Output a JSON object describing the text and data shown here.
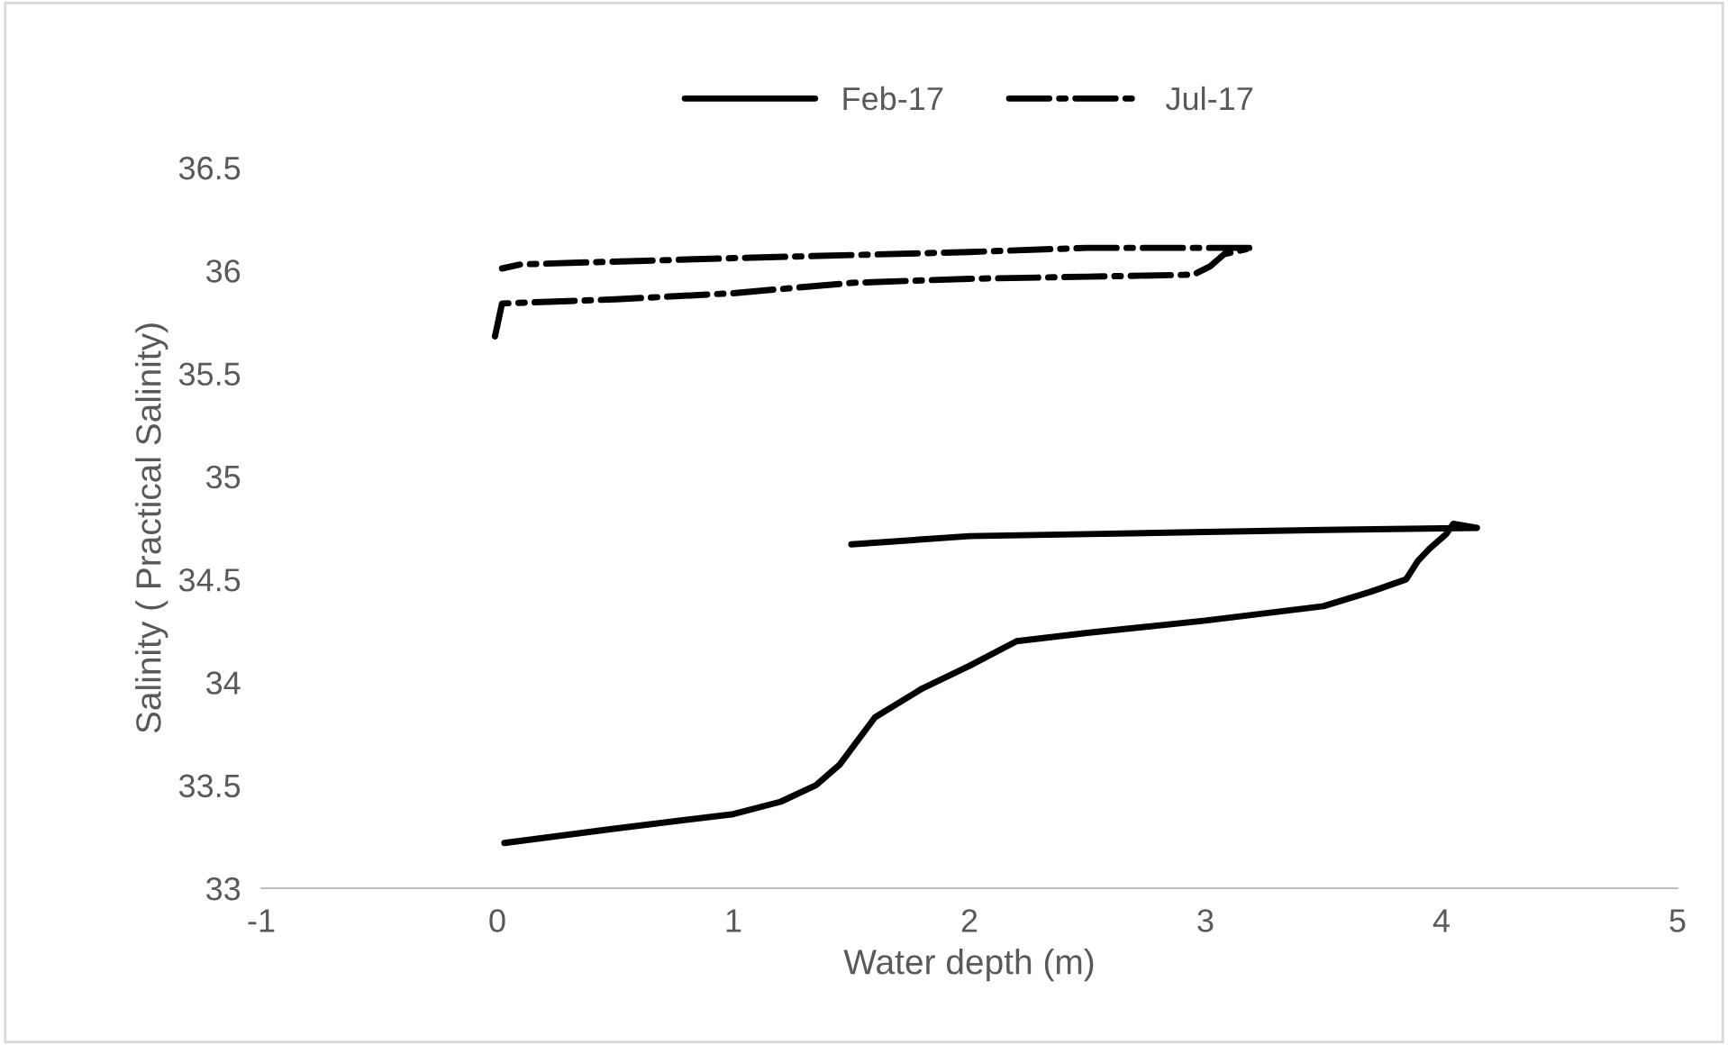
{
  "chart_data": {
    "type": "line",
    "xlabel": "Water depth (m)",
    "ylabel": "Salinity ( Practical Salinity)",
    "xlim": [
      -1,
      5
    ],
    "xticks": [
      -1,
      0,
      1,
      2,
      3,
      4,
      5
    ],
    "ylim": [
      33,
      36.5
    ],
    "yticks": [
      33,
      33.5,
      34,
      34.5,
      35,
      35.5,
      36,
      36.5
    ],
    "grid": false,
    "legend": "top",
    "series": [
      {
        "name": "Feb-17",
        "color": "#000000",
        "line_style": "solid",
        "x": [
          0.03,
          0.5,
          1.0,
          1.2,
          1.35,
          1.45,
          1.6,
          1.8,
          2.0,
          2.2,
          2.5,
          3.0,
          3.5,
          3.7,
          3.85,
          3.9,
          3.95,
          4.02,
          4.05,
          4.1,
          4.15,
          3.5,
          3.0,
          2.5,
          2.0,
          1.5
        ],
        "values": [
          33.22,
          33.29,
          33.36,
          33.42,
          33.5,
          33.6,
          33.83,
          33.97,
          34.08,
          34.2,
          34.24,
          34.3,
          34.37,
          34.44,
          34.5,
          34.59,
          34.65,
          34.72,
          34.77,
          34.76,
          34.75,
          34.74,
          34.73,
          34.72,
          34.71,
          34.67
        ]
      },
      {
        "name": "Jul-17",
        "color": "#000000",
        "line_style": "dashdot",
        "x": [
          -0.01,
          0.02,
          0.5,
          1.0,
          1.5,
          2.0,
          2.5,
          2.95,
          3.02,
          3.08,
          3.2,
          2.5,
          2.0,
          1.0,
          0.1,
          0.02
        ],
        "values": [
          35.68,
          35.84,
          35.86,
          35.89,
          35.94,
          35.96,
          35.97,
          35.98,
          36.02,
          36.08,
          36.11,
          36.11,
          36.09,
          36.06,
          36.03,
          36.01
        ]
      }
    ]
  }
}
